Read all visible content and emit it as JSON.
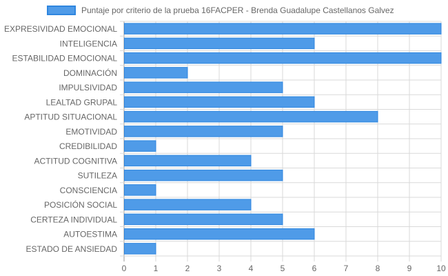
{
  "chart_data": {
    "type": "bar",
    "orientation": "horizontal",
    "categories": [
      "EXPRESIVIDAD EMOCIONAL",
      "INTELIGENCIA",
      "ESTABILIDAD EMOCIONAL",
      "DOMINACIÓN",
      "IMPULSIVIDAD",
      "LEALTAD GRUPAL",
      "APTITUD SITUACIONAL",
      "EMOTIVIDAD",
      "CREDIBILIDAD",
      "ACTITUD COGNITIVA",
      "SUTILEZA",
      "CONSCIENCIA",
      "POSICIÓN SOCIAL",
      "CERTEZA INDIVIDUAL",
      "AUTOESTIMA",
      "ESTADO DE ANSIEDAD"
    ],
    "series": [
      {
        "name": "Puntaje por criterio de la prueba 16FACPER - Brenda Guadalupe Castellanos Galvez",
        "values": [
          10,
          6,
          10,
          2,
          5,
          6,
          8,
          5,
          1,
          4,
          5,
          1,
          4,
          5,
          6,
          1
        ]
      }
    ],
    "xlim": [
      0,
      10
    ],
    "x_ticks": [
      "0",
      "1",
      "2",
      "3",
      "4",
      "5",
      "6",
      "7",
      "8",
      "9",
      "10"
    ],
    "grid": true,
    "legend_position": "top",
    "colors": {
      "bar_fill": "#4f9be8",
      "bar_stroke": "#2f86df",
      "grid": "#d9d9d9",
      "axis": "#999999"
    }
  }
}
